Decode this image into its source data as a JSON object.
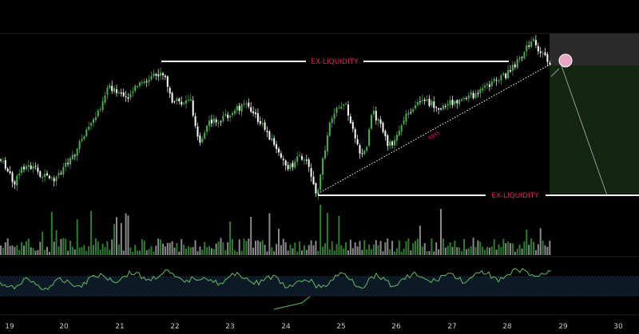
{
  "colors": {
    "background": "#000000",
    "candle_up": "#4caf50",
    "candle_down": "#ffffff",
    "volume_up": "#2e7d32",
    "volume_down": "#8a8a8a",
    "liquidity_line": "#ffffff",
    "liquidity_text": "#e0245e",
    "rsi_line": "#66bb6a",
    "rsi_band": "#0b1a24",
    "target_zone": "#13260f",
    "stop_zone": "#2b2b2b",
    "marker": "#e8a6c3"
  },
  "annotations": {
    "top_liquidity": "EX-LIQUIDITY",
    "bottom_liquidity": "EX-LIQUIDITY",
    "trendline_label": "SSSS"
  },
  "time_axis": {
    "labels": [
      "19",
      "20",
      "21",
      "22",
      "23",
      "24",
      "25",
      "26",
      "27",
      "28",
      "29",
      "30"
    ]
  },
  "icons": {
    "entry_marker": "circle-marker-icon"
  }
}
